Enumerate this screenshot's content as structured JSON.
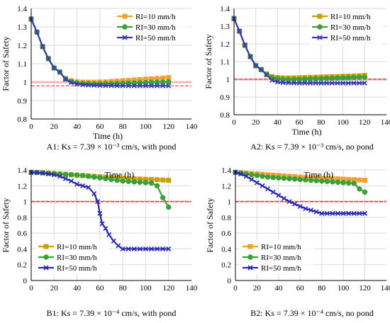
{
  "chart_data": [
    {
      "id": "A1",
      "type": "line",
      "caption": "A1: Ks = 7.39  × 10⁻³ cm/s, with pond",
      "xlabel": "Time (h)",
      "ylabel": "Factor of Safety",
      "xlim": [
        0,
        140
      ],
      "ylim": [
        0.8,
        1.4
      ],
      "xticks": [
        "0",
        "20",
        "40",
        "60",
        "80",
        "100",
        "120",
        "140"
      ],
      "yticks": [
        "0.8",
        "0.9",
        "1",
        "1.1",
        "1.2",
        "1.3",
        "1.4"
      ],
      "ytick_values": [
        0.8,
        0.9,
        1.0,
        1.1,
        1.2,
        1.3,
        1.4
      ],
      "grid": true,
      "legend_position": "top-right",
      "reference_lines": [
        {
          "y": 1.0,
          "color": "#f5b8b8"
        },
        {
          "y": 0.98,
          "color": "#c0504d"
        }
      ],
      "series": [
        {
          "name": "RI=10 mm/h",
          "color": "#f0a030",
          "marker": "square",
          "x": [
            0,
            5,
            10,
            15,
            20,
            25,
            30,
            35,
            40,
            45,
            50,
            55,
            60,
            65,
            70,
            75,
            80,
            85,
            90,
            95,
            100,
            105,
            110,
            115,
            120
          ],
          "y": [
            1.343,
            1.272,
            1.193,
            1.128,
            1.077,
            1.055,
            1.02,
            1.008,
            1.002,
            1.0,
            1.0,
            1.0,
            1.001,
            1.002,
            1.004,
            1.006,
            1.008,
            1.01,
            1.012,
            1.014,
            1.016,
            1.018,
            1.02,
            1.022,
            1.025
          ]
        },
        {
          "name": "RI=30 mm/h",
          "color": "#3aa13a",
          "marker": "circle",
          "x": [
            0,
            5,
            10,
            15,
            20,
            25,
            30,
            35,
            40,
            45,
            50,
            55,
            60,
            65,
            70,
            75,
            80,
            85,
            90,
            95,
            100,
            105,
            110,
            115,
            120
          ],
          "y": [
            1.343,
            1.272,
            1.193,
            1.128,
            1.077,
            1.055,
            1.018,
            1.004,
            0.996,
            0.993,
            0.992,
            0.991,
            0.991,
            0.992,
            0.992,
            0.993,
            0.994,
            0.995,
            0.996,
            0.997,
            0.998,
            0.999,
            1.0,
            1.001,
            1.002
          ]
        },
        {
          "name": "RI=50 mm/h",
          "color": "#3a3ab0",
          "marker": "x",
          "x": [
            0,
            5,
            10,
            15,
            20,
            25,
            30,
            35,
            40,
            45,
            50,
            55,
            60,
            65,
            70,
            75,
            80,
            85,
            90,
            95,
            100,
            105,
            110,
            115,
            120
          ],
          "y": [
            1.343,
            1.272,
            1.193,
            1.128,
            1.077,
            1.055,
            1.015,
            0.998,
            0.99,
            0.986,
            0.984,
            0.983,
            0.982,
            0.981,
            0.981,
            0.98,
            0.98,
            0.98,
            0.98,
            0.98,
            0.98,
            0.98,
            0.98,
            0.98,
            0.98
          ]
        }
      ]
    },
    {
      "id": "A2",
      "type": "line",
      "caption": "A2: Ks = 7.39  × 10⁻³ cm/s, no pond",
      "xlabel": "Time (h)",
      "ylabel": "Factor of Safety",
      "xlim": [
        0,
        140
      ],
      "ylim": [
        0.8,
        1.4
      ],
      "xticks": [
        "0",
        "20",
        "40",
        "60",
        "80",
        "100",
        "120",
        "140"
      ],
      "yticks": [
        "0.8",
        "0.9",
        "1",
        "1.1",
        "1.2",
        "1.3",
        "1.4"
      ],
      "ytick_values": [
        0.8,
        0.9,
        1.0,
        1.1,
        1.2,
        1.3,
        1.4
      ],
      "grid": true,
      "legend_position": "top-right",
      "reference_lines": [
        {
          "y": 1.0,
          "color": "#f5b8b8"
        },
        {
          "y": 1.0,
          "color": "#c0504d"
        }
      ],
      "series": [
        {
          "name": "RI=10 mm/h",
          "color": "#c8a000",
          "marker": "square",
          "x": [
            0,
            5,
            10,
            15,
            20,
            25,
            30,
            35,
            40,
            45,
            50,
            55,
            60,
            65,
            70,
            75,
            80,
            85,
            90,
            95,
            100,
            105,
            110,
            115,
            120
          ],
          "y": [
            1.343,
            1.272,
            1.193,
            1.128,
            1.077,
            1.055,
            1.03,
            1.015,
            1.01,
            1.008,
            1.008,
            1.008,
            1.009,
            1.01,
            1.011,
            1.012,
            1.013,
            1.014,
            1.015,
            1.016,
            1.017,
            1.018,
            1.019,
            1.02,
            1.022
          ]
        },
        {
          "name": "RI=30 mm/h",
          "color": "#3aa13a",
          "marker": "circle",
          "x": [
            0,
            5,
            10,
            15,
            20,
            25,
            30,
            35,
            40,
            45,
            50,
            55,
            60,
            65,
            70,
            75,
            80,
            85,
            90,
            95,
            100,
            105,
            110,
            115,
            120
          ],
          "y": [
            1.343,
            1.272,
            1.193,
            1.128,
            1.077,
            1.055,
            1.028,
            1.01,
            1.003,
            1.0,
            0.999,
            0.999,
            1.0,
            1.001,
            1.002,
            1.003,
            1.004,
            1.005,
            1.006,
            1.007,
            1.008,
            1.009,
            1.01,
            1.011,
            1.012
          ]
        },
        {
          "name": "RI=50 mm/h",
          "color": "#3a3ab0",
          "marker": "x",
          "x": [
            0,
            5,
            10,
            15,
            20,
            25,
            30,
            35,
            40,
            45,
            50,
            55,
            60,
            65,
            70,
            75,
            80,
            85,
            90,
            95,
            100,
            105,
            110,
            115,
            120
          ],
          "y": [
            1.343,
            1.272,
            1.193,
            1.128,
            1.077,
            1.055,
            1.025,
            0.995,
            0.985,
            0.981,
            0.98,
            0.979,
            0.979,
            0.979,
            0.979,
            0.979,
            0.979,
            0.979,
            0.979,
            0.979,
            0.979,
            0.979,
            0.979,
            0.979,
            0.979
          ]
        }
      ]
    },
    {
      "id": "B1",
      "type": "line",
      "caption": "B1: Ks = 7.39  × 10⁻⁴ cm/s, with pond",
      "xlabel": "Time (h)",
      "ylabel": "Factor of Safety",
      "xlim": [
        0,
        140
      ],
      "ylim": [
        0,
        1.4
      ],
      "xticks": [
        "0",
        "20",
        "40",
        "60",
        "80",
        "100",
        "120",
        "140"
      ],
      "yticks": [
        "0",
        "0.2",
        "0.4",
        "0.6",
        "0.8",
        "1",
        "1.2",
        "1.4"
      ],
      "ytick_values": [
        0,
        0.2,
        0.4,
        0.6,
        0.8,
        1.0,
        1.2,
        1.4
      ],
      "grid": true,
      "legend_position": "bottom-left",
      "reference_lines": [
        {
          "y": 1.0,
          "color": "#f5b8b8"
        },
        {
          "y": 1.0,
          "color": "#c0504d"
        }
      ],
      "series": [
        {
          "name": "RI=10 mm/h",
          "color": "#c8a000",
          "marker": "square",
          "x": [
            0,
            5,
            10,
            15,
            20,
            25,
            30,
            35,
            40,
            45,
            50,
            55,
            60,
            65,
            70,
            75,
            80,
            85,
            90,
            95,
            100,
            105,
            110,
            115,
            120
          ],
          "y": [
            1.37,
            1.368,
            1.365,
            1.36,
            1.355,
            1.35,
            1.345,
            1.34,
            1.335,
            1.33,
            1.325,
            1.32,
            1.315,
            1.31,
            1.305,
            1.3,
            1.295,
            1.29,
            1.288,
            1.285,
            1.282,
            1.28,
            1.277,
            1.273,
            1.27
          ]
        },
        {
          "name": "RI=30 mm/h",
          "color": "#3aa13a",
          "marker": "circle",
          "x": [
            0,
            5,
            10,
            15,
            20,
            25,
            30,
            35,
            40,
            45,
            50,
            55,
            60,
            65,
            70,
            75,
            80,
            85,
            90,
            95,
            100,
            105,
            110,
            115,
            120
          ],
          "y": [
            1.37,
            1.368,
            1.365,
            1.36,
            1.355,
            1.35,
            1.345,
            1.34,
            1.335,
            1.33,
            1.32,
            1.31,
            1.3,
            1.29,
            1.28,
            1.27,
            1.26,
            1.255,
            1.25,
            1.245,
            1.24,
            1.235,
            1.2,
            1.05,
            0.93
          ]
        },
        {
          "name": "RI=50 mm/h",
          "color": "#2a2ab0",
          "marker": "x",
          "x": [
            0,
            5,
            10,
            15,
            20,
            25,
            30,
            35,
            40,
            45,
            50,
            55,
            58,
            60,
            62,
            65,
            68,
            72,
            76,
            80,
            85,
            90,
            95,
            100,
            105,
            110,
            115,
            120
          ],
          "y": [
            1.37,
            1.368,
            1.36,
            1.35,
            1.34,
            1.32,
            1.29,
            1.26,
            1.22,
            1.2,
            1.18,
            1.1,
            1.0,
            0.85,
            0.72,
            0.66,
            0.58,
            0.5,
            0.44,
            0.4,
            0.4,
            0.4,
            0.4,
            0.4,
            0.4,
            0.4,
            0.4,
            0.4
          ]
        }
      ]
    },
    {
      "id": "B2",
      "type": "line",
      "caption": "B2: Ks = 7.39  × 10⁻⁴ cm/s, no pond",
      "xlabel": "Time (h)",
      "ylabel": "Factor of Safety",
      "xlim": [
        0,
        140
      ],
      "ylim": [
        0,
        1.4
      ],
      "xticks": [
        "0",
        "20",
        "40",
        "60",
        "80",
        "100",
        "120",
        "140"
      ],
      "yticks": [
        "0",
        "0.2",
        "0.4",
        "0.6",
        "0.8",
        "1",
        "1.2",
        "1.4"
      ],
      "ytick_values": [
        0,
        0.2,
        0.4,
        0.6,
        0.8,
        1.0,
        1.2,
        1.4
      ],
      "grid": true,
      "legend_position": "bottom-left",
      "reference_lines": [
        {
          "y": 1.0,
          "color": "#f5b8b8"
        },
        {
          "y": 1.0,
          "color": "#c0504d"
        }
      ],
      "series": [
        {
          "name": "RI=10 mm/h",
          "color": "#f0a030",
          "marker": "square",
          "x": [
            0,
            5,
            10,
            15,
            20,
            25,
            30,
            35,
            40,
            45,
            50,
            55,
            60,
            65,
            70,
            75,
            80,
            85,
            90,
            95,
            100,
            105,
            110,
            115,
            120
          ],
          "y": [
            1.37,
            1.365,
            1.36,
            1.355,
            1.35,
            1.345,
            1.34,
            1.335,
            1.33,
            1.325,
            1.32,
            1.315,
            1.31,
            1.305,
            1.3,
            1.298,
            1.295,
            1.292,
            1.29,
            1.287,
            1.284,
            1.28,
            1.277,
            1.273,
            1.27
          ]
        },
        {
          "name": "RI=30 mm/h",
          "color": "#3aa13a",
          "marker": "circle",
          "x": [
            0,
            5,
            10,
            15,
            20,
            25,
            30,
            35,
            40,
            45,
            50,
            55,
            60,
            65,
            70,
            75,
            80,
            85,
            90,
            95,
            100,
            105,
            110,
            115,
            120
          ],
          "y": [
            1.37,
            1.36,
            1.35,
            1.34,
            1.33,
            1.32,
            1.31,
            1.305,
            1.3,
            1.295,
            1.29,
            1.285,
            1.28,
            1.275,
            1.27,
            1.265,
            1.26,
            1.255,
            1.25,
            1.245,
            1.24,
            1.235,
            1.23,
            1.16,
            1.12
          ]
        },
        {
          "name": "RI=50 mm/h",
          "color": "#2a2ab0",
          "marker": "x",
          "x": [
            0,
            5,
            10,
            15,
            20,
            25,
            30,
            35,
            40,
            45,
            50,
            55,
            60,
            65,
            70,
            75,
            80,
            85,
            90,
            95,
            100,
            105,
            110,
            115,
            120
          ],
          "y": [
            1.37,
            1.35,
            1.32,
            1.28,
            1.24,
            1.2,
            1.16,
            1.12,
            1.08,
            1.04,
            1.0,
            0.97,
            0.94,
            0.91,
            0.89,
            0.87,
            0.85,
            0.85,
            0.85,
            0.85,
            0.85,
            0.85,
            0.85,
            0.85,
            0.85
          ]
        }
      ]
    }
  ]
}
